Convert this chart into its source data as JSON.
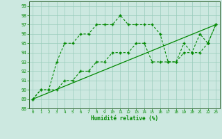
{
  "xlabel": "Humidité relative (%)",
  "bg_color": "#cce8e0",
  "grid_color": "#99ccbb",
  "line_color": "#008800",
  "xlim": [
    -0.5,
    23.5
  ],
  "ylim": [
    88,
    99.5
  ],
  "xticks": [
    0,
    1,
    2,
    3,
    4,
    5,
    6,
    7,
    8,
    9,
    10,
    11,
    12,
    13,
    14,
    15,
    16,
    17,
    18,
    19,
    20,
    21,
    22,
    23
  ],
  "yticks": [
    88,
    89,
    90,
    91,
    92,
    93,
    94,
    95,
    96,
    97,
    98,
    99
  ],
  "line1_x": [
    0,
    1,
    2,
    3,
    4,
    5,
    6,
    7,
    8,
    9,
    10,
    11,
    12,
    13,
    14,
    15,
    16,
    17,
    18,
    19,
    20,
    21,
    22,
    23
  ],
  "line1_y": [
    89,
    90,
    90,
    93,
    95,
    95,
    96,
    96,
    97,
    97,
    97,
    98,
    97,
    97,
    97,
    97,
    96,
    93,
    93,
    95,
    94,
    96,
    95,
    97
  ],
  "line2_x": [
    0,
    1,
    2,
    3,
    4,
    5,
    6,
    7,
    8,
    9,
    10,
    11,
    12,
    13,
    14,
    15,
    16,
    17,
    18,
    19,
    20,
    21,
    22,
    23
  ],
  "line2_y": [
    89,
    90,
    90,
    90,
    91,
    91,
    92,
    92,
    93,
    93,
    94,
    94,
    94,
    95,
    95,
    93,
    93,
    93,
    93,
    94,
    94,
    94,
    95,
    97
  ],
  "line3_x": [
    0,
    23
  ],
  "line3_y": [
    89,
    97
  ]
}
